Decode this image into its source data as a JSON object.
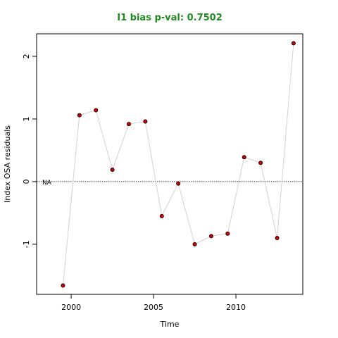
{
  "chart_data": {
    "type": "scatter",
    "title": "I1 bias p-val: 0.7502",
    "xlabel": "Time",
    "ylabel": "Index OSA residuals",
    "annotation": "NA",
    "x": [
      1999.5,
      2000.5,
      2001.5,
      2002.5,
      2003.5,
      2004.5,
      2005.5,
      2006.5,
      2007.5,
      2008.5,
      2009.5,
      2010.5,
      2011.5,
      2012.5,
      2013.5
    ],
    "values": [
      -1.66,
      1.06,
      1.14,
      0.19,
      0.92,
      0.96,
      -0.55,
      -0.03,
      -1.0,
      -0.87,
      -0.83,
      0.39,
      0.3,
      -0.9,
      2.21
    ],
    "color": "#cc0000",
    "line_color": "#d3d3d3",
    "title_color": "#228b22",
    "hline": 0,
    "xlim": [
      1997.9,
      2014.06
    ],
    "xticks": [
      2000,
      2005,
      2010
    ],
    "ylim": [
      -1.8,
      2.36
    ],
    "yticks": [
      -1,
      0,
      1,
      2
    ]
  }
}
